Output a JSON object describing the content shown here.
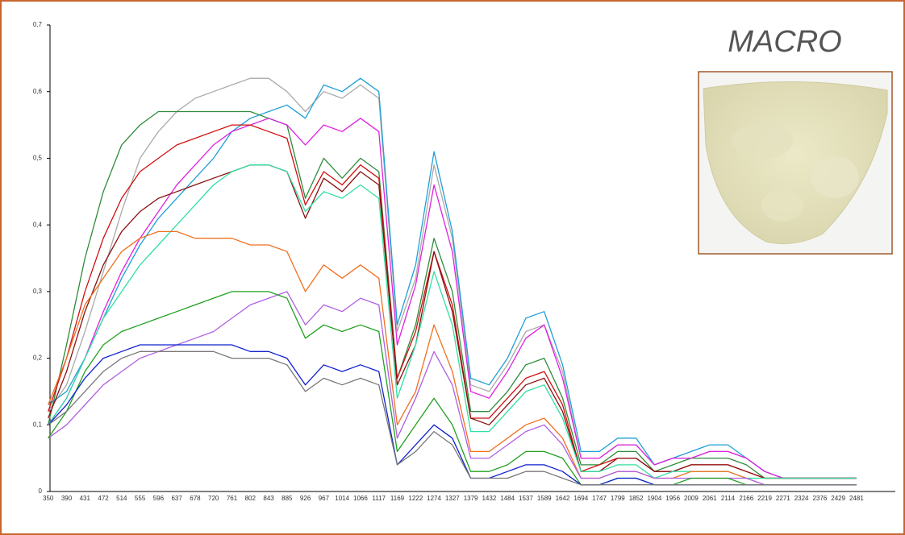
{
  "chart_data": {
    "type": "line",
    "annotation": "MACRO",
    "categories": [
      "350",
      "390",
      "431",
      "472",
      "514",
      "555",
      "596",
      "637",
      "678",
      "720",
      "761",
      "802",
      "843",
      "885",
      "926",
      "967",
      "1014",
      "1066",
      "1117",
      "1169",
      "1222",
      "1274",
      "1327",
      "1379",
      "1432",
      "1484",
      "1537",
      "1589",
      "1642",
      "1694",
      "1747",
      "1799",
      "1852",
      "1904",
      "1956",
      "2009",
      "2061",
      "2114",
      "2166",
      "2219",
      "2271",
      "2324",
      "2376",
      "2429",
      "2481"
    ],
    "ylim": [
      0,
      0.7
    ],
    "yticks": [
      0,
      {
        "value": 0.1,
        "label": "0,1"
      },
      {
        "value": 0.2,
        "label": "0,2"
      },
      {
        "value": 0.3,
        "label": "0,3"
      },
      {
        "value": 0.4,
        "label": "0,4"
      },
      {
        "value": 0.5,
        "label": "0,5"
      },
      {
        "value": 0.6,
        "label": "0,6"
      },
      {
        "value": 0.7,
        "label": "0,7"
      }
    ],
    "series": [
      {
        "color": "#aaaaaa",
        "values": [
          0.12,
          0.16,
          0.24,
          0.33,
          0.42,
          0.5,
          0.54,
          0.57,
          0.59,
          0.6,
          0.61,
          0.62,
          0.62,
          0.6,
          0.57,
          0.6,
          0.59,
          0.61,
          0.59,
          0.24,
          0.32,
          0.49,
          0.38,
          0.16,
          0.15,
          0.19,
          0.24,
          0.25,
          0.18,
          0.05,
          0.05,
          0.07,
          0.07,
          0.04,
          0.05,
          0.05,
          0.06,
          0.06,
          0.05,
          0.03,
          0.02,
          0.02,
          0.02,
          0.02,
          0.02
        ]
      },
      {
        "color": "#1f9fd6",
        "values": [
          0.13,
          0.15,
          0.2,
          0.26,
          0.32,
          0.37,
          0.41,
          0.44,
          0.47,
          0.5,
          0.54,
          0.56,
          0.57,
          0.58,
          0.56,
          0.61,
          0.6,
          0.62,
          0.6,
          0.25,
          0.34,
          0.51,
          0.39,
          0.17,
          0.16,
          0.2,
          0.26,
          0.27,
          0.19,
          0.06,
          0.06,
          0.08,
          0.08,
          0.04,
          0.05,
          0.06,
          0.07,
          0.07,
          0.05,
          0.03,
          0.02,
          0.02,
          0.02,
          0.02,
          0.02
        ]
      },
      {
        "color": "#2e8b3a",
        "values": [
          0.1,
          0.22,
          0.35,
          0.45,
          0.52,
          0.55,
          0.57,
          0.57,
          0.57,
          0.57,
          0.57,
          0.57,
          0.56,
          0.55,
          0.44,
          0.5,
          0.47,
          0.5,
          0.48,
          0.17,
          0.25,
          0.38,
          0.3,
          0.12,
          0.12,
          0.15,
          0.19,
          0.2,
          0.14,
          0.04,
          0.04,
          0.06,
          0.06,
          0.03,
          0.04,
          0.05,
          0.05,
          0.05,
          0.04,
          0.02,
          0.02,
          0.02,
          0.02,
          0.02,
          0.02
        ]
      },
      {
        "color": "#e020e0",
        "values": [
          0.1,
          0.14,
          0.2,
          0.27,
          0.33,
          0.38,
          0.42,
          0.46,
          0.49,
          0.52,
          0.54,
          0.55,
          0.56,
          0.55,
          0.52,
          0.55,
          0.54,
          0.56,
          0.54,
          0.22,
          0.31,
          0.46,
          0.36,
          0.15,
          0.14,
          0.18,
          0.23,
          0.25,
          0.17,
          0.05,
          0.05,
          0.07,
          0.07,
          0.04,
          0.05,
          0.05,
          0.06,
          0.06,
          0.05,
          0.03,
          0.02,
          0.02,
          0.02,
          0.02,
          0.02
        ]
      },
      {
        "color": "#d01010",
        "values": [
          0.12,
          0.2,
          0.3,
          0.38,
          0.44,
          0.48,
          0.5,
          0.52,
          0.53,
          0.54,
          0.55,
          0.55,
          0.54,
          0.53,
          0.43,
          0.48,
          0.46,
          0.49,
          0.47,
          0.17,
          0.24,
          0.36,
          0.28,
          0.11,
          0.11,
          0.14,
          0.17,
          0.18,
          0.13,
          0.03,
          0.04,
          0.05,
          0.05,
          0.03,
          0.03,
          0.04,
          0.04,
          0.04,
          0.03,
          0.02,
          0.02,
          0.02,
          0.02,
          0.02,
          0.02
        ]
      },
      {
        "color": "#8b1010",
        "values": [
          0.11,
          0.18,
          0.27,
          0.34,
          0.39,
          0.42,
          0.44,
          0.45,
          0.46,
          0.47,
          0.48,
          0.49,
          0.49,
          0.48,
          0.41,
          0.47,
          0.45,
          0.48,
          0.46,
          0.16,
          0.22,
          0.36,
          0.27,
          0.11,
          0.1,
          0.13,
          0.16,
          0.17,
          0.12,
          0.03,
          0.03,
          0.05,
          0.05,
          0.03,
          0.03,
          0.04,
          0.04,
          0.04,
          0.03,
          0.02,
          0.02,
          0.02,
          0.02,
          0.02,
          0.02
        ]
      },
      {
        "color": "#30e0a0",
        "values": [
          0.1,
          0.14,
          0.2,
          0.26,
          0.3,
          0.34,
          0.37,
          0.4,
          0.43,
          0.46,
          0.48,
          0.49,
          0.49,
          0.48,
          0.42,
          0.45,
          0.44,
          0.46,
          0.44,
          0.14,
          0.22,
          0.33,
          0.25,
          0.09,
          0.09,
          0.12,
          0.15,
          0.16,
          0.11,
          0.03,
          0.03,
          0.04,
          0.04,
          0.02,
          0.03,
          0.03,
          0.03,
          0.03,
          0.02,
          0.02,
          0.02,
          0.02,
          0.02,
          0.02,
          0.02
        ]
      },
      {
        "color": "#f07020",
        "values": [
          0.13,
          0.2,
          0.28,
          0.32,
          0.36,
          0.38,
          0.39,
          0.39,
          0.38,
          0.38,
          0.38,
          0.37,
          0.37,
          0.36,
          0.3,
          0.34,
          0.32,
          0.34,
          0.32,
          0.1,
          0.15,
          0.25,
          0.18,
          0.06,
          0.06,
          0.08,
          0.1,
          0.11,
          0.08,
          0.02,
          0.02,
          0.03,
          0.03,
          0.02,
          0.02,
          0.03,
          0.03,
          0.03,
          0.02,
          0.01,
          0.01,
          0.01,
          0.01,
          0.01,
          0.01
        ]
      },
      {
        "color": "#b060e0",
        "values": [
          0.08,
          0.1,
          0.13,
          0.16,
          0.18,
          0.2,
          0.21,
          0.22,
          0.23,
          0.24,
          0.26,
          0.28,
          0.29,
          0.3,
          0.25,
          0.28,
          0.27,
          0.29,
          0.28,
          0.08,
          0.14,
          0.21,
          0.16,
          0.05,
          0.05,
          0.07,
          0.09,
          0.1,
          0.07,
          0.02,
          0.02,
          0.03,
          0.03,
          0.02,
          0.02,
          0.02,
          0.02,
          0.02,
          0.02,
          0.01,
          0.01,
          0.01,
          0.01,
          0.01,
          0.01
        ]
      },
      {
        "color": "#20a020",
        "values": [
          0.08,
          0.12,
          0.18,
          0.22,
          0.24,
          0.25,
          0.26,
          0.27,
          0.28,
          0.29,
          0.3,
          0.3,
          0.3,
          0.29,
          0.23,
          0.25,
          0.24,
          0.25,
          0.24,
          0.06,
          0.1,
          0.14,
          0.1,
          0.03,
          0.03,
          0.04,
          0.06,
          0.06,
          0.05,
          0.01,
          0.01,
          0.02,
          0.02,
          0.01,
          0.01,
          0.02,
          0.02,
          0.02,
          0.01,
          0.01,
          0.01,
          0.01,
          0.01,
          0.01,
          0.01
        ]
      },
      {
        "color": "#1020d0",
        "values": [
          0.1,
          0.13,
          0.17,
          0.2,
          0.21,
          0.22,
          0.22,
          0.22,
          0.22,
          0.22,
          0.22,
          0.21,
          0.21,
          0.2,
          0.16,
          0.19,
          0.18,
          0.19,
          0.18,
          0.04,
          0.07,
          0.1,
          0.08,
          0.02,
          0.02,
          0.03,
          0.04,
          0.04,
          0.03,
          0.01,
          0.01,
          0.02,
          0.02,
          0.01,
          0.01,
          0.01,
          0.01,
          0.01,
          0.01,
          0.01,
          0.01,
          0.01,
          0.01,
          0.01,
          0.01
        ]
      },
      {
        "color": "#777777",
        "values": [
          0.1,
          0.12,
          0.15,
          0.18,
          0.2,
          0.21,
          0.21,
          0.21,
          0.21,
          0.21,
          0.2,
          0.2,
          0.2,
          0.19,
          0.15,
          0.17,
          0.16,
          0.17,
          0.16,
          0.04,
          0.06,
          0.09,
          0.07,
          0.02,
          0.02,
          0.02,
          0.03,
          0.03,
          0.02,
          0.01,
          0.01,
          0.01,
          0.01,
          0.01,
          0.01,
          0.01,
          0.01,
          0.01,
          0.01,
          0.01,
          0.01,
          0.01,
          0.01,
          0.01,
          0.01
        ]
      }
    ]
  }
}
